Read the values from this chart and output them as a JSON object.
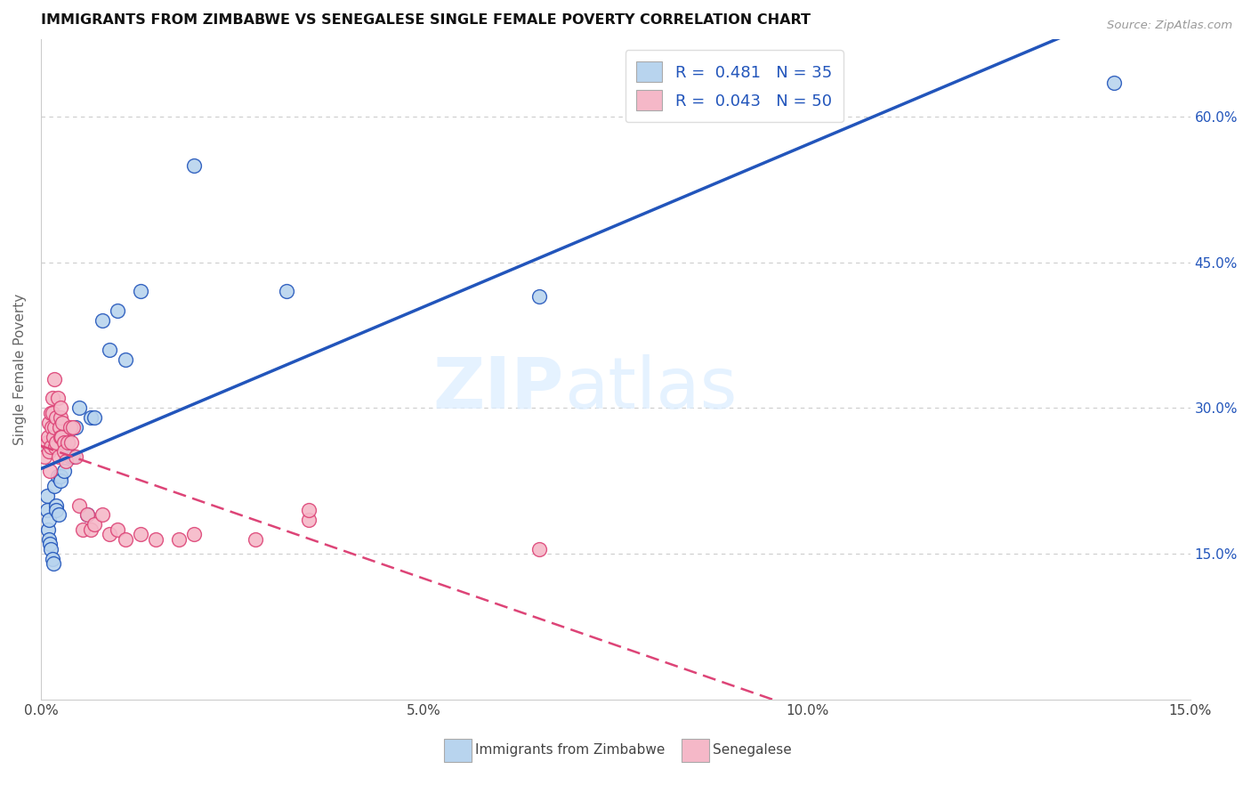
{
  "title": "IMMIGRANTS FROM ZIMBABWE VS SENEGALESE SINGLE FEMALE POVERTY CORRELATION CHART",
  "source": "Source: ZipAtlas.com",
  "ylabel_left": "Single Female Poverty",
  "legend_label1": "Immigrants from Zimbabwe",
  "legend_label2": "Senegalese",
  "R1": 0.481,
  "N1": 35,
  "R2": 0.043,
  "N2": 50,
  "color1": "#b8d4ee",
  "color2": "#f5b8c8",
  "line_color1": "#2255bb",
  "line_color2": "#dd4477",
  "xmin": 0.0,
  "xmax": 0.15,
  "ymin": 0.0,
  "ymax": 0.68,
  "yticks": [
    0.15,
    0.3,
    0.45,
    0.6
  ],
  "ytick_labels": [
    "15.0%",
    "30.0%",
    "45.0%",
    "60.0%"
  ],
  "xticks": [
    0.0,
    0.05,
    0.1,
    0.15
  ],
  "xtick_labels": [
    "0.0%",
    "5.0%",
    "10.0%",
    "15.0%"
  ],
  "watermark_zip": "ZIP",
  "watermark_atlas": "atlas",
  "zimbabwe_x": [
    0.0008,
    0.0008,
    0.0009,
    0.001,
    0.0011,
    0.0012,
    0.0013,
    0.0015,
    0.0016,
    0.0018,
    0.002,
    0.002,
    0.0022,
    0.0023,
    0.0025,
    0.0025,
    0.0028,
    0.003,
    0.0035,
    0.0038,
    0.0042,
    0.0045,
    0.005,
    0.006,
    0.0065,
    0.007,
    0.008,
    0.009,
    0.01,
    0.011,
    0.013,
    0.02,
    0.032,
    0.065,
    0.14
  ],
  "zimbabwe_y": [
    0.21,
    0.195,
    0.175,
    0.165,
    0.185,
    0.16,
    0.155,
    0.145,
    0.14,
    0.22,
    0.2,
    0.195,
    0.23,
    0.19,
    0.23,
    0.225,
    0.26,
    0.235,
    0.275,
    0.25,
    0.25,
    0.28,
    0.3,
    0.19,
    0.29,
    0.29,
    0.39,
    0.36,
    0.4,
    0.35,
    0.42,
    0.55,
    0.42,
    0.415,
    0.635
  ],
  "senegalese_x": [
    0.0005,
    0.0008,
    0.0009,
    0.001,
    0.0011,
    0.0012,
    0.0013,
    0.0013,
    0.0014,
    0.0015,
    0.0015,
    0.0016,
    0.0017,
    0.0018,
    0.0019,
    0.002,
    0.002,
    0.0022,
    0.0023,
    0.0024,
    0.0025,
    0.0025,
    0.0026,
    0.0027,
    0.0028,
    0.003,
    0.003,
    0.0032,
    0.0035,
    0.0038,
    0.004,
    0.0042,
    0.0045,
    0.005,
    0.0055,
    0.006,
    0.0065,
    0.007,
    0.008,
    0.009,
    0.01,
    0.011,
    0.013,
    0.015,
    0.018,
    0.02,
    0.028,
    0.035,
    0.035,
    0.065
  ],
  "senegalese_y": [
    0.25,
    0.265,
    0.27,
    0.255,
    0.285,
    0.235,
    0.295,
    0.26,
    0.28,
    0.31,
    0.295,
    0.27,
    0.33,
    0.28,
    0.26,
    0.29,
    0.265,
    0.31,
    0.25,
    0.28,
    0.29,
    0.27,
    0.3,
    0.27,
    0.285,
    0.265,
    0.255,
    0.245,
    0.265,
    0.28,
    0.265,
    0.28,
    0.25,
    0.2,
    0.175,
    0.19,
    0.175,
    0.18,
    0.19,
    0.17,
    0.175,
    0.165,
    0.17,
    0.165,
    0.165,
    0.17,
    0.165,
    0.185,
    0.195,
    0.155
  ]
}
